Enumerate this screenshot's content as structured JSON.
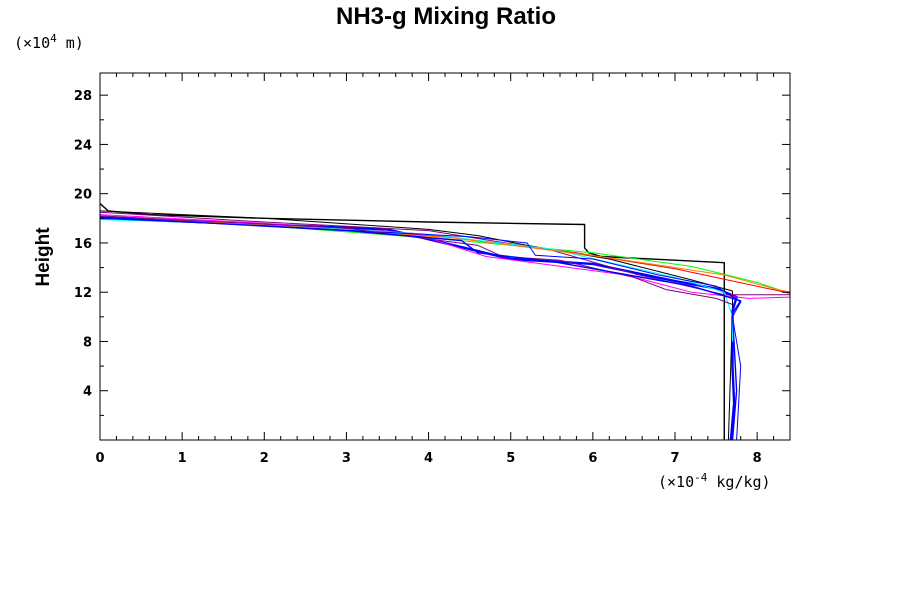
{
  "chart_data": {
    "type": "line",
    "title": "NH3-g Mixing Ratio",
    "ylabel": "Height",
    "y_unit": {
      "prefix": "(×10",
      "exp": "4",
      "suffix": " m)"
    },
    "x_unit": {
      "prefix": "(×10",
      "exp": "-4",
      "suffix": " kg/kg)"
    },
    "xlim": [
      0,
      8.4
    ],
    "ylim": [
      0,
      29.8
    ],
    "x_ticks": [
      "0",
      "1",
      "2",
      "3",
      "4",
      "5",
      "6",
      "7",
      "8"
    ],
    "y_ticks": [
      "4",
      "8",
      "12",
      "16",
      "20",
      "24",
      "28"
    ],
    "grid": false,
    "series": [
      {
        "color": "#000000",
        "width": 1.4,
        "points": [
          [
            0,
            19.2
          ],
          [
            0.1,
            18.6
          ],
          [
            0.6,
            18.3
          ],
          [
            2,
            18.0
          ],
          [
            4,
            17.7
          ],
          [
            5.9,
            17.5
          ],
          [
            5.9,
            15.6
          ],
          [
            5.95,
            15.2
          ],
          [
            6.1,
            14.9
          ],
          [
            7.6,
            14.4
          ],
          [
            7.6,
            0
          ]
        ]
      },
      {
        "color": "#000000",
        "width": 1.0,
        "points": [
          [
            0,
            18.6
          ],
          [
            2,
            18.0
          ],
          [
            4,
            17.1
          ],
          [
            4.6,
            16.6
          ],
          [
            5.2,
            15.8
          ],
          [
            6.2,
            14.7
          ],
          [
            7.2,
            13.0
          ],
          [
            7.7,
            12.1
          ],
          [
            7.7,
            10.5
          ],
          [
            7.65,
            0
          ]
        ]
      },
      {
        "color": "#0000ff",
        "width": 2.4,
        "points": [
          [
            0,
            18.0
          ],
          [
            2,
            17.5
          ],
          [
            3.5,
            17.1
          ],
          [
            4.5,
            15.5
          ],
          [
            5.0,
            14.7
          ],
          [
            6.0,
            14.3
          ],
          [
            7.0,
            12.9
          ],
          [
            7.5,
            12.3
          ],
          [
            7.75,
            11.6
          ],
          [
            7.7,
            10.5
          ],
          [
            7.7,
            6.0
          ],
          [
            7.72,
            3.0
          ],
          [
            7.68,
            0
          ]
        ]
      },
      {
        "color": "#ff00ff",
        "width": 1.0,
        "points": [
          [
            0,
            18.3
          ],
          [
            2,
            17.6
          ],
          [
            3.8,
            16.8
          ],
          [
            4.7,
            14.9
          ],
          [
            6.4,
            13.4
          ],
          [
            7.2,
            12.0
          ],
          [
            7.9,
            11.5
          ],
          [
            8.4,
            11.6
          ]
        ]
      },
      {
        "color": "#800080",
        "width": 1.0,
        "points": [
          [
            0,
            18.5
          ],
          [
            2,
            17.7
          ],
          [
            4,
            17.0
          ],
          [
            5.5,
            15.4
          ],
          [
            6.5,
            13.5
          ],
          [
            7.6,
            11.8
          ],
          [
            8.4,
            11.8
          ]
        ]
      },
      {
        "color": "#00ff00",
        "width": 1.0,
        "points": [
          [
            0,
            18.2
          ],
          [
            2,
            17.4
          ],
          [
            4.2,
            16.3
          ],
          [
            6.0,
            15.2
          ],
          [
            7.2,
            14.1
          ],
          [
            8.0,
            12.8
          ],
          [
            8.4,
            11.9
          ]
        ]
      },
      {
        "color": "#ff0000",
        "width": 1.0,
        "points": [
          [
            0,
            18.1
          ],
          [
            2,
            17.5
          ],
          [
            4.2,
            16.5
          ],
          [
            5.8,
            15.2
          ],
          [
            7.0,
            13.9
          ],
          [
            8.2,
            12.2
          ],
          [
            8.4,
            11.9
          ]
        ]
      },
      {
        "color": "#00ffff",
        "width": 1.0,
        "points": [
          [
            0,
            17.9
          ],
          [
            2,
            17.5
          ],
          [
            4.0,
            16.7
          ],
          [
            5.5,
            15.5
          ],
          [
            7.0,
            13.2
          ],
          [
            7.6,
            12.0
          ],
          [
            7.7,
            10.0
          ],
          [
            7.7,
            8.0
          ]
        ]
      },
      {
        "color": "#ff8000",
        "width": 1.0,
        "points": [
          [
            0,
            18.0
          ],
          [
            2,
            17.5
          ],
          [
            4.3,
            16.4
          ],
          [
            6.2,
            14.8
          ],
          [
            7.6,
            13.4
          ],
          [
            8.2,
            12.3
          ],
          [
            8.4,
            12.0
          ]
        ]
      },
      {
        "color": "#0000ff",
        "width": 1.0,
        "points": [
          [
            0,
            18.0
          ],
          [
            2,
            17.4
          ],
          [
            4.5,
            16.5
          ],
          [
            5.2,
            16.0
          ],
          [
            5.3,
            15.0
          ],
          [
            6.0,
            14.7
          ],
          [
            6.8,
            13.4
          ],
          [
            7.5,
            12.5
          ],
          [
            7.8,
            11.2
          ],
          [
            7.7,
            10.0
          ],
          [
            7.8,
            6.0
          ],
          [
            7.75,
            0
          ]
        ]
      },
      {
        "color": "#800080",
        "width": 1.0,
        "points": [
          [
            0,
            18.2
          ],
          [
            3,
            17.2
          ],
          [
            4.6,
            15.8
          ],
          [
            4.9,
            14.9
          ],
          [
            5.6,
            14.6
          ],
          [
            6.5,
            13.2
          ],
          [
            6.9,
            12.2
          ],
          [
            7.5,
            11.5
          ],
          [
            7.7,
            11.0
          ]
        ]
      },
      {
        "color": "#0000ff",
        "width": 1.4,
        "points": [
          [
            0,
            18.1
          ],
          [
            3,
            17.0
          ],
          [
            4.4,
            16.2
          ],
          [
            4.6,
            15.2
          ],
          [
            5.5,
            14.5
          ],
          [
            7.2,
            12.5
          ],
          [
            7.8,
            11.3
          ],
          [
            7.7,
            10.3
          ],
          [
            7.75,
            4.0
          ],
          [
            7.7,
            0
          ]
        ]
      }
    ]
  }
}
